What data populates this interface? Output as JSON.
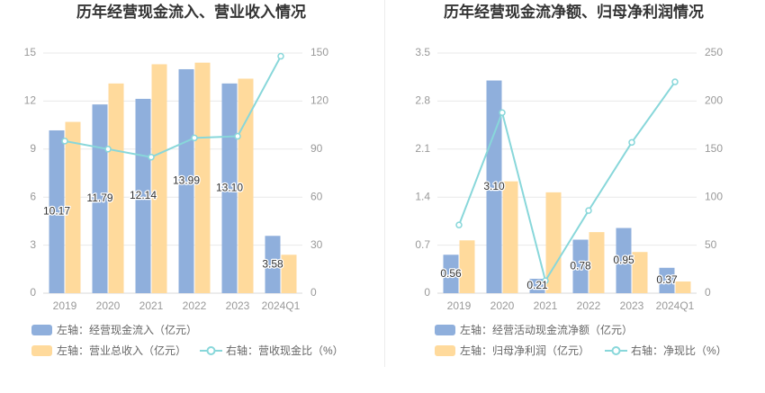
{
  "colors": {
    "bar_primary": "#8fafdc",
    "bar_secondary": "#ffda9c",
    "line": "#88d7da",
    "gridline": "#e9e9e9",
    "axis_line": "#d9d9d9",
    "axis_text": "#999999",
    "title_text": "#333333",
    "legend_text": "#666666"
  },
  "chart_data": [
    {
      "type": "bar",
      "title": "历年经营现金流入、营业收入情况",
      "categories": [
        "2019",
        "2020",
        "2021",
        "2022",
        "2023",
        "2024Q1"
      ],
      "series": [
        {
          "name": "左轴：经营现金流入（亿元）",
          "type": "bar",
          "axis": "left",
          "values": [
            10.17,
            11.79,
            12.14,
            13.99,
            13.1,
            3.58
          ],
          "labels": [
            "10.17",
            "11.79",
            "12.14",
            "13.99",
            "13.10",
            "3.58"
          ]
        },
        {
          "name": "左轴：营业总收入（亿元）",
          "type": "bar",
          "axis": "left",
          "values": [
            10.7,
            13.1,
            14.3,
            14.4,
            13.4,
            2.4
          ]
        },
        {
          "name": "右轴：营收现金比（%）",
          "type": "line",
          "axis": "right",
          "values": [
            95,
            90,
            85,
            97,
            98,
            148
          ]
        }
      ],
      "y_left": {
        "ylim": [
          0,
          15
        ],
        "ticks": [
          "0",
          "3",
          "6",
          "9",
          "12",
          "15"
        ]
      },
      "y_right": {
        "ylim": [
          0,
          150
        ],
        "ticks": [
          "0",
          "30",
          "60",
          "90",
          "120",
          "150"
        ]
      },
      "grid": true,
      "legend": "bottom-left"
    },
    {
      "type": "bar",
      "title": "历年经营现金流净额、归母净利润情况",
      "categories": [
        "2019",
        "2020",
        "2021",
        "2022",
        "2023",
        "2024Q1"
      ],
      "series": [
        {
          "name": "左轴：经营活动现金流净额（亿元）",
          "type": "bar",
          "axis": "left",
          "values": [
            0.56,
            3.1,
            0.21,
            0.78,
            0.95,
            0.37
          ],
          "labels": [
            "0.56",
            "3.10",
            "0.21",
            "0.78",
            "0.95",
            "0.37"
          ]
        },
        {
          "name": "左轴：归母净利润（亿元）",
          "type": "bar",
          "axis": "left",
          "values": [
            0.77,
            1.63,
            1.47,
            0.89,
            0.6,
            0.17
          ]
        },
        {
          "name": "右轴：净现比（%）",
          "type": "line",
          "axis": "right",
          "values": [
            71,
            188,
            13,
            86,
            157,
            220
          ]
        }
      ],
      "y_left": {
        "ylim": [
          0,
          3.5
        ],
        "ticks": [
          "0",
          "0.7",
          "1.4",
          "2.1",
          "2.8",
          "3.5"
        ]
      },
      "y_right": {
        "ylim": [
          0,
          250
        ],
        "ticks": [
          "0",
          "50",
          "100",
          "150",
          "200",
          "250"
        ]
      },
      "grid": true,
      "legend": "bottom-left"
    }
  ]
}
